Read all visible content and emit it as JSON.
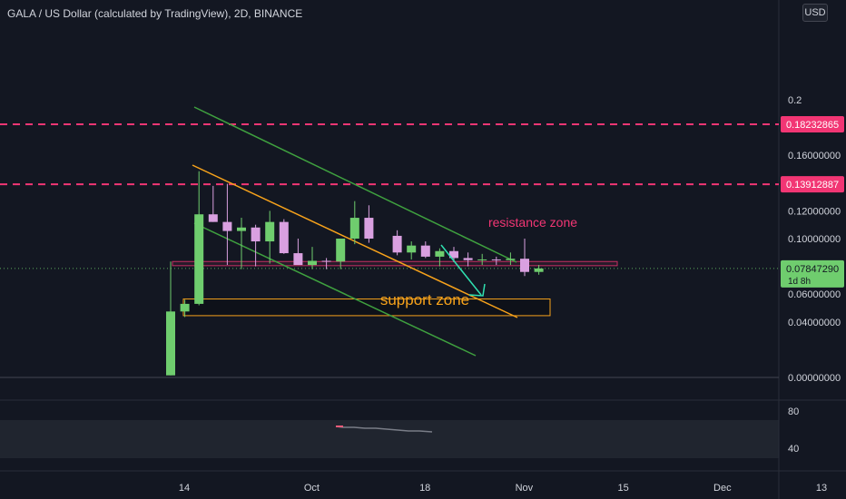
{
  "header": {
    "title": "GALA / US Dollar (calculated by TradingView), 2D, BINANCE",
    "currency_badge": "USD"
  },
  "colors": {
    "background": "#131722",
    "up": "#6fcd6e",
    "down": "#d9a0e0",
    "channel": "#3fa13f",
    "support_line": "#f7a21b",
    "dashed_level": "#f23674",
    "last_price": "#6fcd6e",
    "arrow": "#2fe0b0",
    "text": "#d1d4dc"
  },
  "chart_data": {
    "type": "candlestick",
    "title": "GALA / US Dollar (calculated by TradingView), 2D, BINANCE",
    "ylim": [
      -0.013,
      0.202
    ],
    "y_ticks": [
      {
        "value": 0.2,
        "label": "0.2"
      },
      {
        "value": 0.16,
        "label": "0.16000000"
      },
      {
        "value": 0.12,
        "label": "0.12000000"
      },
      {
        "value": 0.1,
        "label": "0.10000000"
      },
      {
        "value": 0.06,
        "label": "0.06000000"
      },
      {
        "value": 0.04,
        "label": "0.04000000"
      },
      {
        "value": 0.0,
        "label": "0.00000000"
      }
    ],
    "x_ticks": [
      {
        "index": 0,
        "label": "14"
      },
      {
        "index": 9,
        "label": "Oct"
      },
      {
        "index": 17,
        "label": "18"
      },
      {
        "index": 24,
        "label": "Nov"
      },
      {
        "index": 31,
        "label": "15"
      },
      {
        "index": 38,
        "label": "Dec"
      },
      {
        "index": 45,
        "label": "13"
      }
    ],
    "candles": [
      {
        "o": 0.0015,
        "h": 0.0835,
        "l": 0.0015,
        "c": 0.0475
      },
      {
        "o": 0.0475,
        "h": 0.056,
        "l": 0.0435,
        "c": 0.053
      },
      {
        "o": 0.053,
        "h": 0.1485,
        "l": 0.052,
        "c": 0.1175
      },
      {
        "o": 0.1175,
        "h": 0.138,
        "l": 0.112,
        "c": 0.112
      },
      {
        "o": 0.112,
        "h": 0.1395,
        "l": 0.081,
        "c": 0.1055
      },
      {
        "o": 0.1055,
        "h": 0.115,
        "l": 0.078,
        "c": 0.108
      },
      {
        "o": 0.108,
        "h": 0.11,
        "l": 0.08,
        "c": 0.098
      },
      {
        "o": 0.098,
        "h": 0.12,
        "l": 0.082,
        "c": 0.112
      },
      {
        "o": 0.112,
        "h": 0.114,
        "l": 0.089,
        "c": 0.0895
      },
      {
        "o": 0.0895,
        "h": 0.1,
        "l": 0.082,
        "c": 0.081
      },
      {
        "o": 0.081,
        "h": 0.094,
        "l": 0.078,
        "c": 0.084
      },
      {
        "o": 0.084,
        "h": 0.086,
        "l": 0.078,
        "c": 0.0835
      },
      {
        "o": 0.0835,
        "h": 0.099,
        "l": 0.078,
        "c": 0.1
      },
      {
        "o": 0.1,
        "h": 0.127,
        "l": 0.096,
        "c": 0.115
      },
      {
        "o": 0.115,
        "h": 0.124,
        "l": 0.097,
        "c": 0.1
      }
    ],
    "late_candles": [
      {
        "index": 16,
        "o": 0.102,
        "h": 0.106,
        "l": 0.088,
        "c": 0.09
      },
      {
        "index": 17,
        "o": 0.09,
        "h": 0.098,
        "l": 0.085,
        "c": 0.095
      },
      {
        "index": 18,
        "o": 0.095,
        "h": 0.098,
        "l": 0.086,
        "c": 0.087
      },
      {
        "index": 19,
        "o": 0.087,
        "h": 0.093,
        "l": 0.08,
        "c": 0.091
      },
      {
        "index": 20,
        "o": 0.091,
        "h": 0.094,
        "l": 0.083,
        "c": 0.086
      },
      {
        "index": 21,
        "o": 0.086,
        "h": 0.09,
        "l": 0.08,
        "c": 0.0845
      },
      {
        "index": 22,
        "o": 0.0845,
        "h": 0.089,
        "l": 0.081,
        "c": 0.085
      },
      {
        "index": 23,
        "o": 0.085,
        "h": 0.087,
        "l": 0.081,
        "c": 0.0845
      },
      {
        "index": 24,
        "o": 0.0845,
        "h": 0.09,
        "l": 0.081,
        "c": 0.0855
      },
      {
        "index": 25,
        "o": 0.0855,
        "h": 0.1,
        "l": 0.073,
        "c": 0.076
      },
      {
        "index": 26,
        "o": 0.076,
        "h": 0.081,
        "l": 0.074,
        "c": 0.0785
      }
    ],
    "price_labels": [
      {
        "value": 0.18232865,
        "label": "0.18232865"
      },
      {
        "value": 0.13912887,
        "label": "0.13912887"
      },
      {
        "value": 0.0784729,
        "label": "0.07847290",
        "sub": "1d 8h"
      }
    ],
    "annotations": {
      "resistance_zone": {
        "label": "resistance zone",
        "y_low": 0.0805,
        "y_high": 0.0835
      },
      "support_zone": {
        "label": "support zone",
        "y_low": 0.0445,
        "y_high": 0.0565
      }
    },
    "oscillator": {
      "ticks": [
        {
          "value": 80,
          "label": "80"
        },
        {
          "value": 40,
          "label": "40"
        }
      ]
    }
  }
}
